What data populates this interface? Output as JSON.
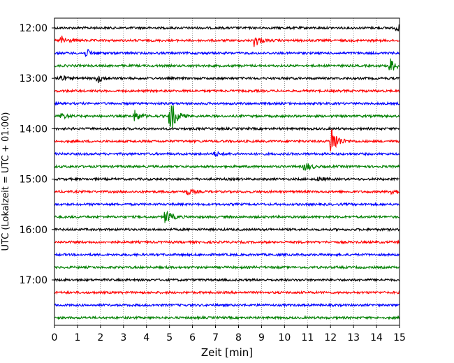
{
  "chart_data": {
    "type": "line",
    "title": "",
    "xlabel": "Zeit  [min]",
    "ylabel": "UTC (Lokalzeit = UTC + 01:00)",
    "xlim": [
      0,
      15
    ],
    "x_ticks": [
      "0",
      "1",
      "2",
      "3",
      "4",
      "5",
      "6",
      "7",
      "8",
      "9",
      "10",
      "11",
      "12",
      "13",
      "14",
      "15"
    ],
    "y_ticks": [
      "12:00",
      "13:00",
      "14:00",
      "15:00",
      "16:00",
      "17:00"
    ],
    "grid": "vertical dotted at each minute",
    "line_colors": [
      "#000000",
      "#ff0000",
      "#0000ff",
      "#008000"
    ],
    "traces": [
      {
        "start": "12:00",
        "color": "#000000",
        "events": [
          {
            "t": 14.9,
            "amp": 0.3
          }
        ]
      },
      {
        "start": "12:15",
        "color": "#ff0000",
        "events": [
          {
            "t": 0.3,
            "amp": 0.45
          },
          {
            "t": 8.7,
            "amp": 0.65
          }
        ]
      },
      {
        "start": "12:30",
        "color": "#0000ff",
        "events": [
          {
            "t": 1.4,
            "amp": 0.35
          }
        ]
      },
      {
        "start": "12:45",
        "color": "#008000",
        "events": [
          {
            "t": 14.6,
            "amp": 0.75
          }
        ]
      },
      {
        "start": "13:00",
        "color": "#000000",
        "events": [
          {
            "t": 0.2,
            "amp": 0.4
          },
          {
            "t": 1.9,
            "amp": 0.4
          }
        ]
      },
      {
        "start": "13:15",
        "color": "#ff0000",
        "events": []
      },
      {
        "start": "13:30",
        "color": "#0000ff",
        "events": []
      },
      {
        "start": "13:45",
        "color": "#008000",
        "events": [
          {
            "t": 0.3,
            "amp": 0.3
          },
          {
            "t": 3.5,
            "amp": 0.55
          },
          {
            "t": 5.05,
            "amp": 1.7
          }
        ]
      },
      {
        "start": "14:00",
        "color": "#000000",
        "events": []
      },
      {
        "start": "14:15",
        "color": "#ff0000",
        "events": [
          {
            "t": 12.05,
            "amp": 1.6
          }
        ]
      },
      {
        "start": "14:30",
        "color": "#0000ff",
        "events": [
          {
            "t": 7.0,
            "amp": 0.2
          }
        ]
      },
      {
        "start": "14:45",
        "color": "#008000",
        "events": [
          {
            "t": 10.9,
            "amp": 0.45
          }
        ]
      },
      {
        "start": "15:00",
        "color": "#000000",
        "events": [
          {
            "t": 11.5,
            "amp": 0.2
          }
        ]
      },
      {
        "start": "15:15",
        "color": "#ff0000",
        "events": [
          {
            "t": 5.8,
            "amp": 0.3
          },
          {
            "t": 14.7,
            "amp": 0.3
          }
        ]
      },
      {
        "start": "15:30",
        "color": "#0000ff",
        "events": []
      },
      {
        "start": "15:45",
        "color": "#008000",
        "events": [
          {
            "t": 4.85,
            "amp": 0.7
          }
        ]
      },
      {
        "start": "16:00",
        "color": "#000000",
        "events": []
      },
      {
        "start": "16:15",
        "color": "#ff0000",
        "events": []
      },
      {
        "start": "16:30",
        "color": "#0000ff",
        "events": []
      },
      {
        "start": "16:45",
        "color": "#008000",
        "events": []
      },
      {
        "start": "17:00",
        "color": "#000000",
        "events": []
      },
      {
        "start": "17:15",
        "color": "#ff0000",
        "events": []
      },
      {
        "start": "17:30",
        "color": "#0000ff",
        "events": []
      },
      {
        "start": "17:45",
        "color": "#008000",
        "events": []
      }
    ]
  }
}
